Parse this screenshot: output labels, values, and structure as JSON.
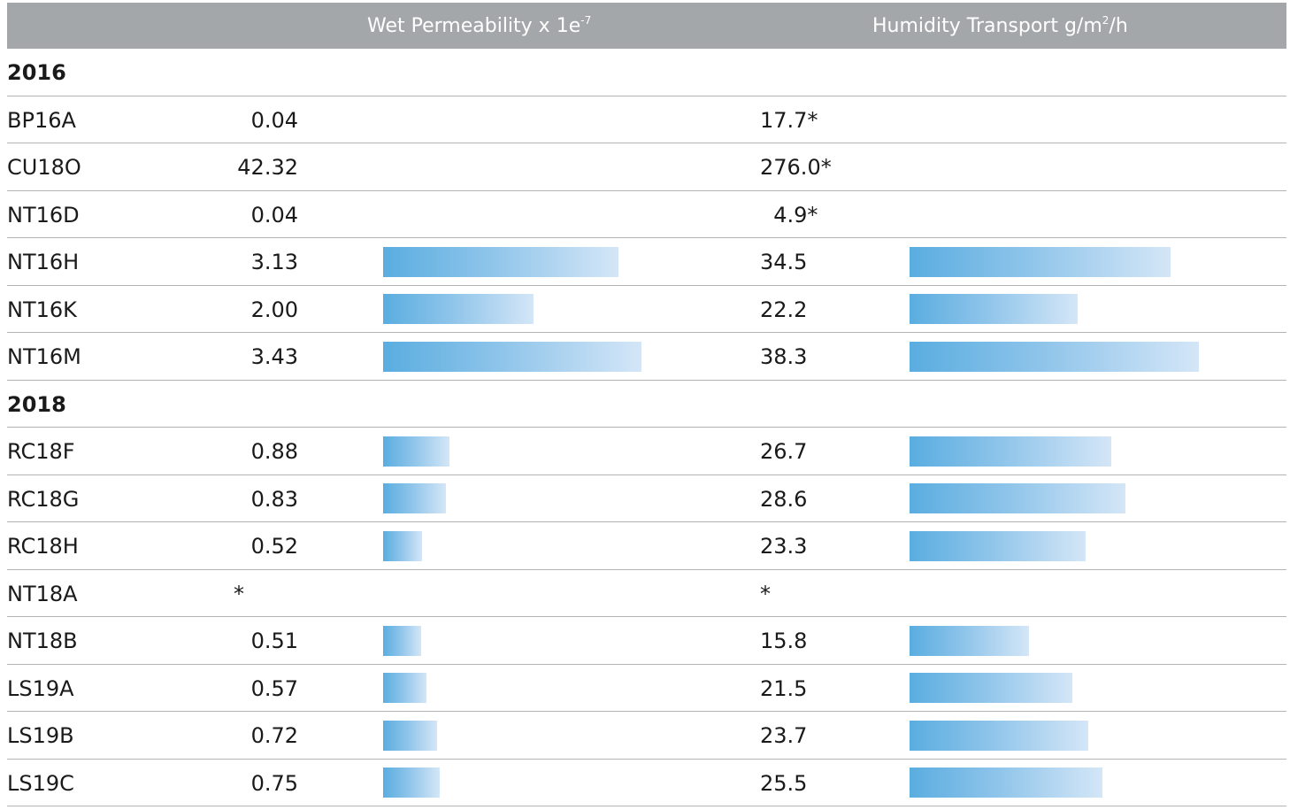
{
  "header": {
    "col1": "",
    "col2_text": "Wet Permeability x 1e",
    "col2_sup": "-7",
    "col3_text": "Humidity Transport g/m",
    "col3_sup": "2",
    "col3_suffix": "/h"
  },
  "colors": {
    "header_bg": "#a4a7a9",
    "header_text": "#ffffff",
    "bar_start": "#5aade0",
    "bar_end": "#d4e6f7",
    "divider": "#b4b4b4"
  },
  "chart_data": {
    "type": "table",
    "columns": [
      "",
      "Wet Permeability x 1e-7",
      "Humidity Transport g/m2/h"
    ],
    "wp_scale_max": 3.43,
    "ht_scale_max": 38.3,
    "groups": [
      {
        "label": "2016",
        "rows": [
          {
            "sample": "BP16A",
            "wp": 0.04,
            "wp_label": "0.04",
            "wp_bar": false,
            "ht": 17.7,
            "ht_label": "17.7*",
            "ht_bar": false
          },
          {
            "sample": "CU18O",
            "wp": 42.32,
            "wp_label": "42.32",
            "wp_bar": false,
            "ht": 276.0,
            "ht_label": "276.0*",
            "ht_bar": false
          },
          {
            "sample": "NT16D",
            "wp": 0.04,
            "wp_label": "0.04",
            "wp_bar": false,
            "ht": 4.9,
            "ht_label": "  4.9*",
            "ht_bar": false
          },
          {
            "sample": "NT16H",
            "wp": 3.13,
            "wp_label": "3.13",
            "wp_bar": true,
            "ht": 34.5,
            "ht_label": "34.5",
            "ht_bar": true
          },
          {
            "sample": "NT16K",
            "wp": 2.0,
            "wp_label": "2.00",
            "wp_bar": true,
            "ht": 22.2,
            "ht_label": "22.2",
            "ht_bar": true
          },
          {
            "sample": "NT16M",
            "wp": 3.43,
            "wp_label": "3.43",
            "wp_bar": true,
            "ht": 38.3,
            "ht_label": "38.3",
            "ht_bar": true
          }
        ]
      },
      {
        "label": "2018",
        "rows": [
          {
            "sample": "RC18F",
            "wp": 0.88,
            "wp_label": "0.88",
            "wp_bar": true,
            "ht": 26.7,
            "ht_label": "26.7",
            "ht_bar": true
          },
          {
            "sample": "RC18G",
            "wp": 0.83,
            "wp_label": "0.83",
            "wp_bar": true,
            "ht": 28.6,
            "ht_label": "28.6",
            "ht_bar": true
          },
          {
            "sample": "RC18H",
            "wp": 0.52,
            "wp_label": "0.52",
            "wp_bar": true,
            "ht": 23.3,
            "ht_label": "23.3",
            "ht_bar": true
          },
          {
            "sample": "NT18A",
            "wp": null,
            "wp_label": "*",
            "wp_bar": false,
            "ht": null,
            "ht_label": "*",
            "ht_bar": false
          },
          {
            "sample": "NT18B",
            "wp": 0.51,
            "wp_label": "0.51",
            "wp_bar": true,
            "ht": 15.8,
            "ht_label": "15.8",
            "ht_bar": true
          },
          {
            "sample": "LS19A",
            "wp": 0.57,
            "wp_label": "0.57",
            "wp_bar": true,
            "ht": 21.5,
            "ht_label": "21.5",
            "ht_bar": true
          },
          {
            "sample": "LS19B",
            "wp": 0.72,
            "wp_label": "0.72",
            "wp_bar": true,
            "ht": 23.7,
            "ht_label": "23.7",
            "ht_bar": true
          },
          {
            "sample": "LS19C",
            "wp": 0.75,
            "wp_label": "0.75",
            "wp_bar": true,
            "ht": 25.5,
            "ht_label": "25.5",
            "ht_bar": true
          }
        ]
      }
    ]
  }
}
